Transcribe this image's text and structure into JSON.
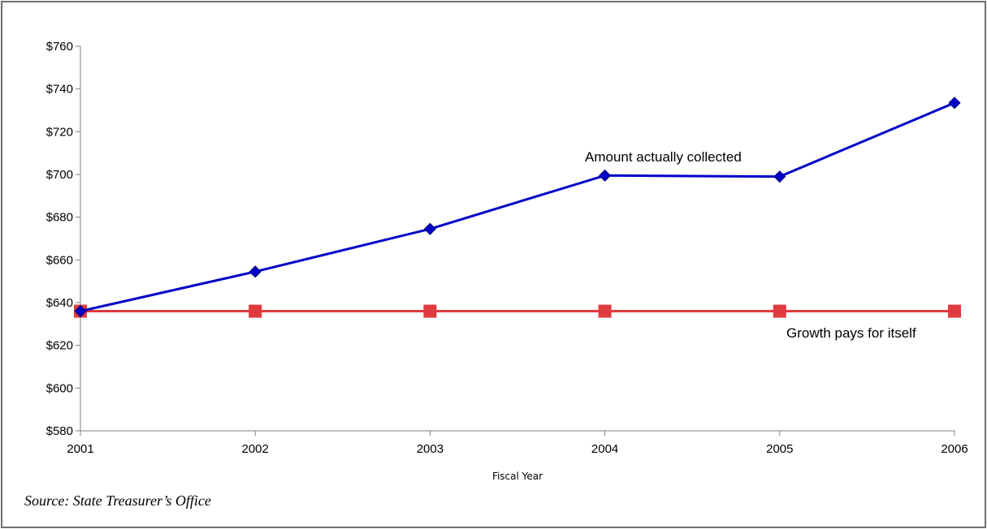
{
  "source_note": "Source: State Treasurer’s Office",
  "chart_data": {
    "type": "line",
    "x": [
      2001,
      2002,
      2003,
      2004,
      2005,
      2006
    ],
    "xlabel": "Fiscal Year",
    "ylabel": "",
    "ylim": [
      580,
      760
    ],
    "y_ticks": [
      580,
      600,
      620,
      640,
      660,
      680,
      700,
      720,
      740,
      760
    ],
    "y_tick_labels": [
      "$580",
      "$600",
      "$620",
      "$640",
      "$660",
      "$680",
      "$700",
      "$720",
      "$740",
      "$760"
    ],
    "grid": false,
    "series": [
      {
        "values": [
          636,
          654.5,
          674.5,
          699.5,
          699,
          733.5
        ],
        "color": "#0000c8",
        "marker": "diamond",
        "label": "Amount actually collected"
      },
      {
        "values": [
          636,
          636,
          636,
          636,
          636,
          636
        ],
        "color": "#e03a3e",
        "marker": "square",
        "label": "Growth pays for itself"
      }
    ]
  }
}
